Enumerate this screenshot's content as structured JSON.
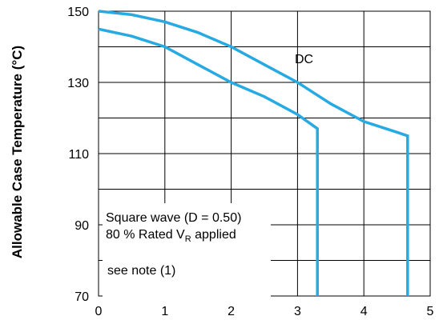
{
  "chart_data": {
    "type": "line",
    "title": "",
    "xlabel": "",
    "ylabel": "Allowable Case Temperature (°C)",
    "xlim": [
      0,
      5
    ],
    "ylim": [
      70,
      150
    ],
    "x_ticks": [
      "0",
      "1",
      "2",
      "3",
      "4",
      "5"
    ],
    "y_ticks": [
      "70",
      "90",
      "110",
      "130",
      "150"
    ],
    "grid": true,
    "line_color": "#27aae1",
    "series": [
      {
        "name": "DC",
        "x": [
          0,
          0.5,
          1.0,
          1.5,
          2.0,
          2.5,
          3.0,
          3.5,
          4.0,
          4.5,
          4.66,
          4.66
        ],
        "y": [
          150,
          149,
          147,
          144,
          140,
          135,
          130,
          124,
          119,
          116,
          115,
          70
        ]
      },
      {
        "name": "Square wave (D = 0.50)",
        "x": [
          0,
          0.5,
          1.0,
          1.5,
          2.0,
          2.5,
          3.0,
          3.3,
          3.3
        ],
        "y": [
          145,
          143,
          140,
          135,
          130,
          126,
          121,
          117,
          70
        ]
      }
    ],
    "annotations": {
      "dc": "DC",
      "square_wave": "Square wave (D = 0.50)",
      "rated_prefix": "80 % Rated V",
      "rated_sub": "R",
      "rated_suffix": " applied",
      "note": "see note (1)"
    }
  }
}
